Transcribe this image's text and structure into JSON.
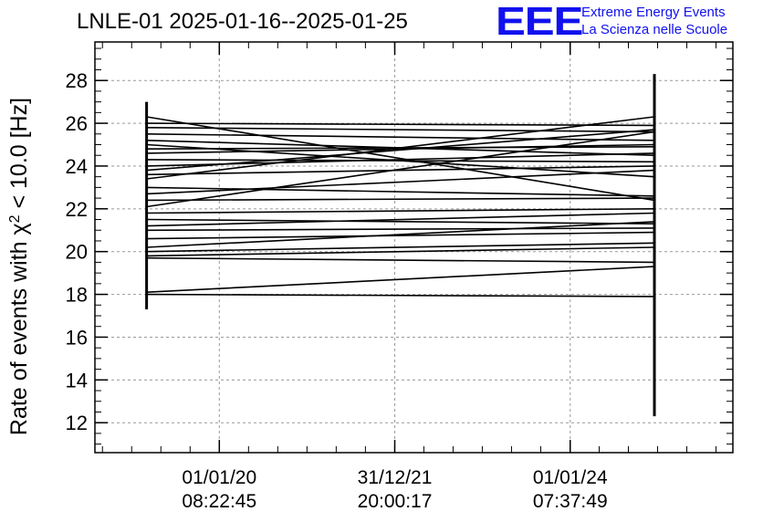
{
  "header": {
    "title": "LNLE-01 2025-01-16--2025-01-25",
    "logo": "EEE",
    "logo_line1": "Extreme Energy Events",
    "logo_line2": "La Scienza nelle Scuole",
    "accent_color": "#1111ee"
  },
  "chart_data": {
    "type": "line",
    "title": "LNLE-01 2025-01-16--2025-01-25",
    "ylabel_parts": [
      "Rate of events with ",
      "χ",
      "2",
      " < 10.0 [Hz]"
    ],
    "ylim": [
      10.6,
      29.8
    ],
    "yticks": [
      12,
      14,
      16,
      18,
      20,
      22,
      24,
      26,
      28
    ],
    "y_minor_step": 0.5,
    "xlim": [
      0,
      1
    ],
    "xticks": [
      {
        "x": 0.195,
        "line1": "01/01/20",
        "line2": "08:22:45"
      },
      {
        "x": 0.47,
        "line1": "31/12/21",
        "line2": "20:00:17"
      },
      {
        "x": 0.745,
        "line1": "01/01/24",
        "line2": "07:37:49"
      }
    ],
    "x_minor_step": 0.0458,
    "grid": true,
    "grid_style": "dashed",
    "line_color": "#000000",
    "error_bars": [
      {
        "x": 0.081,
        "low": 17.3,
        "high": 27.0
      },
      {
        "x": 0.877,
        "low": 12.3,
        "high": 28.3
      }
    ],
    "series": [
      {
        "x": [
          0.081,
          0.877
        ],
        "y": [
          26.3,
          22.4
        ]
      },
      {
        "x": [
          0.081,
          0.877
        ],
        "y": [
          26.0,
          25.9
        ]
      },
      {
        "x": [
          0.081,
          0.877
        ],
        "y": [
          25.8,
          25.6
        ]
      },
      {
        "x": [
          0.081,
          0.877
        ],
        "y": [
          25.5,
          25.2
        ]
      },
      {
        "x": [
          0.081,
          0.877
        ],
        "y": [
          25.2,
          24.5
        ]
      },
      {
        "x": [
          0.081,
          0.877
        ],
        "y": [
          25.0,
          23.5
        ]
      },
      {
        "x": [
          0.081,
          0.877
        ],
        "y": [
          24.8,
          24.9
        ]
      },
      {
        "x": [
          0.081,
          0.877
        ],
        "y": [
          24.6,
          25.0
        ]
      },
      {
        "x": [
          0.081,
          0.877
        ],
        "y": [
          24.3,
          24.2
        ]
      },
      {
        "x": [
          0.081,
          0.877
        ],
        "y": [
          24.0,
          24.6
        ]
      },
      {
        "x": [
          0.081,
          0.877
        ],
        "y": [
          23.8,
          25.7
        ]
      },
      {
        "x": [
          0.081,
          0.877
        ],
        "y": [
          23.6,
          24.0
        ]
      },
      {
        "x": [
          0.081,
          0.877
        ],
        "y": [
          23.4,
          26.3
        ]
      },
      {
        "x": [
          0.081,
          0.877
        ],
        "y": [
          23.0,
          22.6
        ]
      },
      {
        "x": [
          0.081,
          0.877
        ],
        "y": [
          22.7,
          23.8
        ]
      },
      {
        "x": [
          0.081,
          0.877
        ],
        "y": [
          22.4,
          22.5
        ]
      },
      {
        "x": [
          0.081,
          0.877
        ],
        "y": [
          22.1,
          25.6
        ]
      },
      {
        "x": [
          0.081,
          0.877
        ],
        "y": [
          21.8,
          22.0
        ]
      },
      {
        "x": [
          0.081,
          0.877
        ],
        "y": [
          21.5,
          21.3
        ]
      },
      {
        "x": [
          0.081,
          0.877
        ],
        "y": [
          21.2,
          21.8
        ]
      },
      {
        "x": [
          0.081,
          0.877
        ],
        "y": [
          21.0,
          21.1
        ]
      },
      {
        "x": [
          0.081,
          0.877
        ],
        "y": [
          20.6,
          20.9
        ]
      },
      {
        "x": [
          0.081,
          0.877
        ],
        "y": [
          20.2,
          21.4
        ]
      },
      {
        "x": [
          0.081,
          0.877
        ],
        "y": [
          20.0,
          20.4
        ]
      },
      {
        "x": [
          0.081,
          0.877
        ],
        "y": [
          19.8,
          20.2
        ]
      },
      {
        "x": [
          0.081,
          0.877
        ],
        "y": [
          19.7,
          19.5
        ]
      },
      {
        "x": [
          0.081,
          0.877
        ],
        "y": [
          18.1,
          19.3
        ]
      },
      {
        "x": [
          0.081,
          0.877
        ],
        "y": [
          18.0,
          17.9
        ]
      }
    ]
  }
}
